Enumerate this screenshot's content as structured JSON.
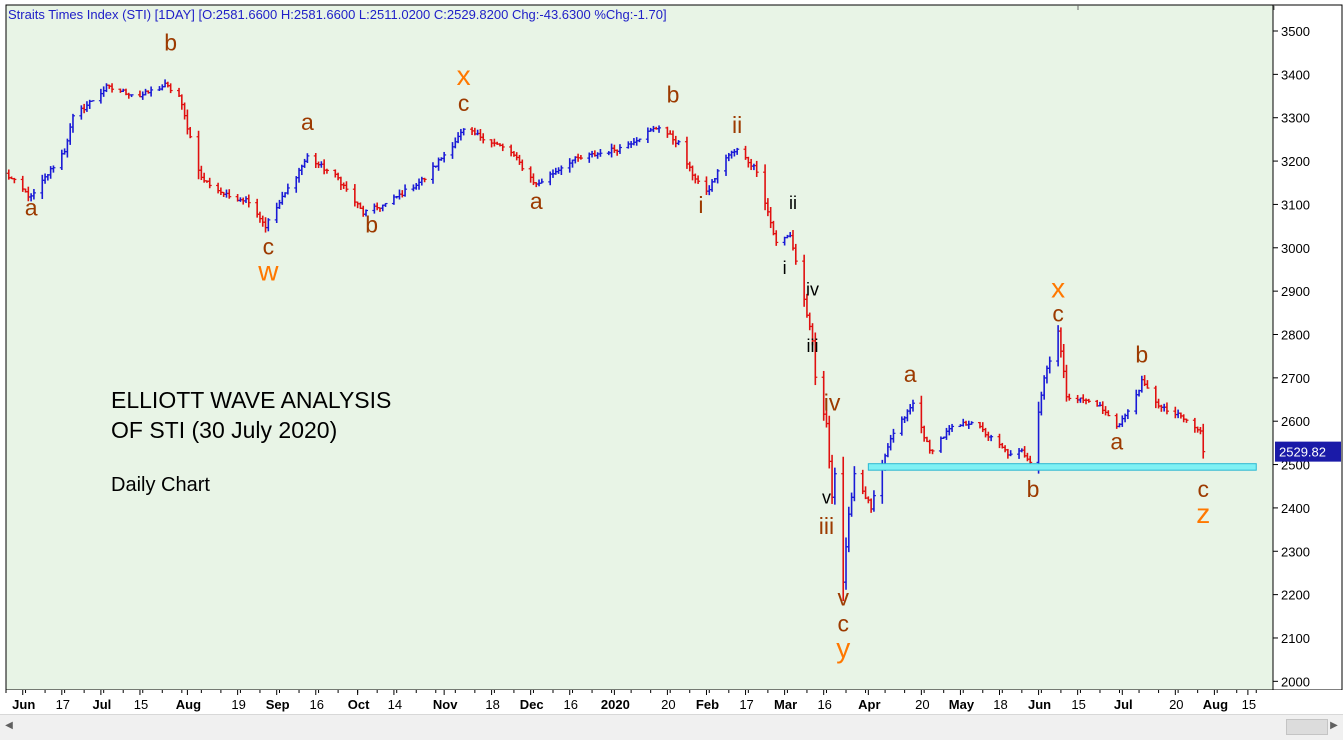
{
  "header": "Straits Times Index (STI) [1DAY] [O:2581.6600 H:2581.6600 L:2511.0200 C:2529.8200 Chg:-43.6300 %Chg:-1.70]",
  "annotation": {
    "title_line1": "ELLIOTT WAVE ANALYSIS",
    "title_line2": "OF STI (30 July 2020)",
    "subtitle": "Daily Chart"
  },
  "last_price_label": "2529.82",
  "colors": {
    "background": "#e8f4e6",
    "up_bar": "#1a1ad6",
    "down_bar": "#e01010",
    "wave_brown": "#9c3a00",
    "wave_orange": "#ff7800",
    "wave_black": "#000000",
    "support_zone_fill": "#7ff0f4",
    "support_zone_stroke": "#2ab8d2",
    "price_label_bg": "#1a1aa8",
    "header_text": "#2020c8"
  },
  "chart_data": {
    "type": "ohlc-bar",
    "title": "Straits Times Index (STI) [1DAY]",
    "subtitle": "ELLIOTT WAVE ANALYSIS OF STI (30 July 2020) — Daily Chart",
    "ylim": [
      1980,
      3560
    ],
    "y_ticks": [
      2000,
      2100,
      2200,
      2300,
      2400,
      2500,
      2600,
      2700,
      2800,
      2900,
      3000,
      3100,
      3200,
      3300,
      3400,
      3500
    ],
    "x_ticks": [
      {
        "label": "Jun",
        "date": "2019-06-03"
      },
      {
        "label": "17",
        "date": "2019-06-17"
      },
      {
        "label": "Jul",
        "date": "2019-07-01"
      },
      {
        "label": "15",
        "date": "2019-07-15"
      },
      {
        "label": "Aug",
        "date": "2019-08-01"
      },
      {
        "label": "19",
        "date": "2019-08-19"
      },
      {
        "label": "Sep",
        "date": "2019-09-02"
      },
      {
        "label": "16",
        "date": "2019-09-16"
      },
      {
        "label": "Oct",
        "date": "2019-10-01"
      },
      {
        "label": "14",
        "date": "2019-10-14"
      },
      {
        "label": "Nov",
        "date": "2019-11-01"
      },
      {
        "label": "18",
        "date": "2019-11-18"
      },
      {
        "label": "Dec",
        "date": "2019-12-02"
      },
      {
        "label": "16",
        "date": "2019-12-16"
      },
      {
        "label": "2020",
        "date": "2020-01-01"
      },
      {
        "label": "20",
        "date": "2020-01-20"
      },
      {
        "label": "Feb",
        "date": "2020-02-03"
      },
      {
        "label": "17",
        "date": "2020-02-17"
      },
      {
        "label": "Mar",
        "date": "2020-03-02"
      },
      {
        "label": "16",
        "date": "2020-03-16"
      },
      {
        "label": "Apr",
        "date": "2020-04-01"
      },
      {
        "label": "20",
        "date": "2020-04-20"
      },
      {
        "label": "May",
        "date": "2020-05-04"
      },
      {
        "label": "18",
        "date": "2020-05-18"
      },
      {
        "label": "Jun",
        "date": "2020-06-01"
      },
      {
        "label": "15",
        "date": "2020-06-15"
      },
      {
        "label": "Jul",
        "date": "2020-07-01"
      },
      {
        "label": "20",
        "date": "2020-07-20"
      },
      {
        "label": "Aug",
        "date": "2020-08-03"
      },
      {
        "label": "15",
        "date": "2020-08-15"
      }
    ],
    "x_range": [
      "2019-05-28",
      "2020-08-24"
    ],
    "price_anchors": [
      {
        "date": "2019-05-28",
        "close": 3170
      },
      {
        "date": "2019-06-06",
        "close": 3115
      },
      {
        "date": "2019-06-18",
        "close": 3225
      },
      {
        "date": "2019-06-21",
        "close": 3300
      },
      {
        "date": "2019-07-03",
        "close": 3370
      },
      {
        "date": "2019-07-15",
        "close": 3350
      },
      {
        "date": "2019-07-24",
        "close": 3375
      },
      {
        "date": "2019-07-29",
        "close": 3350
      },
      {
        "date": "2019-08-06",
        "close": 3160
      },
      {
        "date": "2019-08-15",
        "close": 3120
      },
      {
        "date": "2019-08-23",
        "close": 3110
      },
      {
        "date": "2019-08-29",
        "close": 3050
      },
      {
        "date": "2019-09-05",
        "close": 3125
      },
      {
        "date": "2019-09-13",
        "close": 3210
      },
      {
        "date": "2019-09-24",
        "close": 3160
      },
      {
        "date": "2019-10-03",
        "close": 3080
      },
      {
        "date": "2019-10-11",
        "close": 3100
      },
      {
        "date": "2019-10-25",
        "close": 3160
      },
      {
        "date": "2019-11-08",
        "close": 3270
      },
      {
        "date": "2019-11-15",
        "close": 3255
      },
      {
        "date": "2019-11-25",
        "close": 3220
      },
      {
        "date": "2019-12-04",
        "close": 3145
      },
      {
        "date": "2019-12-16",
        "close": 3200
      },
      {
        "date": "2020-01-03",
        "close": 3230
      },
      {
        "date": "2020-01-17",
        "close": 3280
      },
      {
        "date": "2020-01-24",
        "close": 3240
      },
      {
        "date": "2020-01-28",
        "close": 3180
      },
      {
        "date": "2020-02-03",
        "close": 3125
      },
      {
        "date": "2020-02-10",
        "close": 3210
      },
      {
        "date": "2020-02-14",
        "close": 3225
      },
      {
        "date": "2020-02-21",
        "close": 3180
      },
      {
        "date": "2020-02-28",
        "close": 3010
      },
      {
        "date": "2020-03-04",
        "close": 3030
      },
      {
        "date": "2020-03-09",
        "close": 2880
      },
      {
        "date": "2020-03-12",
        "close": 2780
      },
      {
        "date": "2020-03-13",
        "close": 2700
      },
      {
        "date": "2020-03-17",
        "close": 2590
      },
      {
        "date": "2020-03-19",
        "close": 2430
      },
      {
        "date": "2020-03-20",
        "close": 2480
      },
      {
        "date": "2020-03-23",
        "close": 2230
      },
      {
        "date": "2020-03-25",
        "close": 2380
      },
      {
        "date": "2020-03-27",
        "close": 2480
      },
      {
        "date": "2020-04-02",
        "close": 2400
      },
      {
        "date": "2020-04-09",
        "close": 2560
      },
      {
        "date": "2020-04-17",
        "close": 2640
      },
      {
        "date": "2020-04-23",
        "close": 2530
      },
      {
        "date": "2020-04-30",
        "close": 2580
      },
      {
        "date": "2020-05-08",
        "close": 2600
      },
      {
        "date": "2020-05-15",
        "close": 2560
      },
      {
        "date": "2020-05-22",
        "close": 2520
      },
      {
        "date": "2020-05-26",
        "close": 2530
      },
      {
        "date": "2020-05-29",
        "close": 2510
      },
      {
        "date": "2020-06-03",
        "close": 2700
      },
      {
        "date": "2020-06-08",
        "close": 2810
      },
      {
        "date": "2020-06-11",
        "close": 2660
      },
      {
        "date": "2020-06-16",
        "close": 2650
      },
      {
        "date": "2020-06-22",
        "close": 2640
      },
      {
        "date": "2020-06-29",
        "close": 2590
      },
      {
        "date": "2020-07-03",
        "close": 2620
      },
      {
        "date": "2020-07-08",
        "close": 2690
      },
      {
        "date": "2020-07-15",
        "close": 2630
      },
      {
        "date": "2020-07-22",
        "close": 2610
      },
      {
        "date": "2020-07-29",
        "close": 2575
      },
      {
        "date": "2020-07-30",
        "close": 2529.82
      }
    ],
    "support_zone": {
      "from_date": "2020-04-01",
      "to_date": "2020-08-18",
      "low": 2487,
      "high": 2502
    },
    "wave_labels": [
      {
        "text": "a",
        "date": "2019-06-06",
        "price": 3075,
        "color": "brown"
      },
      {
        "text": "b",
        "date": "2019-07-26",
        "price": 3455,
        "color": "brown"
      },
      {
        "text": "c",
        "date": "2019-08-30",
        "price": 2985,
        "color": "brown"
      },
      {
        "text": "w",
        "date": "2019-08-30",
        "price": 2925,
        "color": "orange"
      },
      {
        "text": "a",
        "date": "2019-09-13",
        "price": 3272,
        "color": "brown"
      },
      {
        "text": "b",
        "date": "2019-10-06",
        "price": 3035,
        "color": "brown"
      },
      {
        "text": "x",
        "date": "2019-11-08",
        "price": 3375,
        "color": "orange"
      },
      {
        "text": "c",
        "date": "2019-11-08",
        "price": 3315,
        "color": "brown"
      },
      {
        "text": "a",
        "date": "2019-12-04",
        "price": 3090,
        "color": "brown"
      },
      {
        "text": "b",
        "date": "2020-01-22",
        "price": 3335,
        "color": "brown"
      },
      {
        "text": "i",
        "date": "2020-02-01",
        "price": 3080,
        "color": "brown"
      },
      {
        "text": "ii",
        "date": "2020-02-14",
        "price": 3265,
        "color": "brown"
      },
      {
        "text": "ii",
        "date": "2020-03-05",
        "price": 3090,
        "color": "black"
      },
      {
        "text": "i",
        "date": "2020-03-02",
        "price": 2940,
        "color": "black"
      },
      {
        "text": "iv",
        "date": "2020-03-12",
        "price": 2890,
        "color": "black"
      },
      {
        "text": "iii",
        "date": "2020-03-12",
        "price": 2760,
        "color": "black"
      },
      {
        "text": "iv",
        "date": "2020-03-19",
        "price": 2625,
        "color": "brown"
      },
      {
        "text": "v",
        "date": "2020-03-17",
        "price": 2410,
        "color": "black"
      },
      {
        "text": "iii",
        "date": "2020-03-17",
        "price": 2340,
        "color": "brown"
      },
      {
        "text": "v",
        "date": "2020-03-23",
        "price": 2175,
        "color": "brown"
      },
      {
        "text": "c",
        "date": "2020-03-23",
        "price": 2115,
        "color": "brown"
      },
      {
        "text": "y",
        "date": "2020-03-23",
        "price": 2055,
        "color": "orange"
      },
      {
        "text": "a",
        "date": "2020-04-16",
        "price": 2690,
        "color": "brown"
      },
      {
        "text": "b",
        "date": "2020-05-30",
        "price": 2425,
        "color": "brown"
      },
      {
        "text": "x",
        "date": "2020-06-08",
        "price": 2885,
        "color": "orange"
      },
      {
        "text": "c",
        "date": "2020-06-08",
        "price": 2830,
        "color": "brown"
      },
      {
        "text": "b",
        "date": "2020-07-08",
        "price": 2735,
        "color": "brown"
      },
      {
        "text": "a",
        "date": "2020-06-29",
        "price": 2535,
        "color": "brown"
      },
      {
        "text": "c",
        "date": "2020-07-30",
        "price": 2425,
        "color": "brown"
      },
      {
        "text": "z",
        "date": "2020-07-30",
        "price": 2365,
        "color": "orange"
      }
    ]
  }
}
